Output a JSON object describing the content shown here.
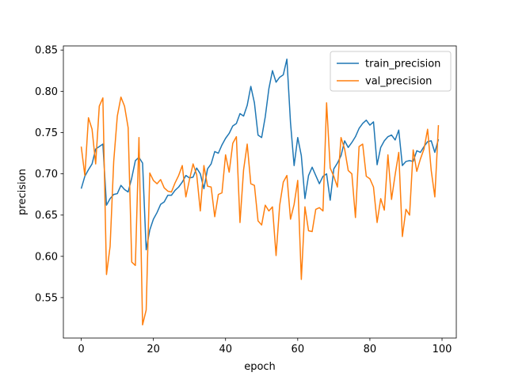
{
  "chart_data": {
    "type": "line",
    "x_label": "epoch",
    "y_label": "precision",
    "x": [
      0,
      1,
      2,
      3,
      4,
      5,
      6,
      7,
      8,
      9,
      10,
      11,
      12,
      13,
      14,
      15,
      16,
      17,
      18,
      19,
      20,
      21,
      22,
      23,
      24,
      25,
      26,
      27,
      28,
      29,
      30,
      31,
      32,
      33,
      34,
      35,
      36,
      37,
      38,
      39,
      40,
      41,
      42,
      43,
      44,
      45,
      46,
      47,
      48,
      49,
      50,
      51,
      52,
      53,
      54,
      55,
      56,
      57,
      58,
      59,
      60,
      61,
      62,
      63,
      64,
      65,
      66,
      67,
      68,
      69,
      70,
      71,
      72,
      73,
      74,
      75,
      76,
      77,
      78,
      79,
      80,
      81,
      82,
      83,
      84,
      85,
      86,
      87,
      88,
      89,
      90,
      91,
      92,
      93,
      94,
      95,
      96,
      97,
      98,
      99
    ],
    "series": [
      {
        "name": "train_precision",
        "color": "#1f77b4",
        "values": [
          0.682,
          0.697,
          0.705,
          0.712,
          0.73,
          0.733,
          0.736,
          0.662,
          0.67,
          0.675,
          0.676,
          0.686,
          0.681,
          0.678,
          0.695,
          0.716,
          0.72,
          0.713,
          0.608,
          0.632,
          0.645,
          0.653,
          0.663,
          0.666,
          0.674,
          0.674,
          0.68,
          0.684,
          0.69,
          0.698,
          0.695,
          0.696,
          0.707,
          0.7,
          0.682,
          0.706,
          0.712,
          0.727,
          0.725,
          0.735,
          0.743,
          0.749,
          0.758,
          0.761,
          0.773,
          0.77,
          0.783,
          0.806,
          0.786,
          0.747,
          0.744,
          0.769,
          0.803,
          0.825,
          0.811,
          0.817,
          0.82,
          0.839,
          0.762,
          0.71,
          0.744,
          0.722,
          0.67,
          0.698,
          0.708,
          0.698,
          0.688,
          0.697,
          0.7,
          0.668,
          0.706,
          0.713,
          0.722,
          0.74,
          0.732,
          0.738,
          0.745,
          0.755,
          0.761,
          0.765,
          0.759,
          0.763,
          0.711,
          0.732,
          0.74,
          0.745,
          0.747,
          0.741,
          0.753,
          0.71,
          0.715,
          0.716,
          0.715,
          0.728,
          0.726,
          0.733,
          0.739,
          0.74,
          0.726,
          0.742
        ]
      },
      {
        "name": "val_precision",
        "color": "#ff7f0e",
        "values": [
          0.733,
          0.698,
          0.768,
          0.754,
          0.712,
          0.782,
          0.792,
          0.578,
          0.612,
          0.715,
          0.77,
          0.793,
          0.782,
          0.756,
          0.593,
          0.589,
          0.744,
          0.517,
          0.535,
          0.701,
          0.692,
          0.688,
          0.693,
          0.683,
          0.679,
          0.678,
          0.689,
          0.698,
          0.71,
          0.672,
          0.693,
          0.712,
          0.699,
          0.655,
          0.71,
          0.685,
          0.684,
          0.648,
          0.675,
          0.677,
          0.723,
          0.702,
          0.737,
          0.745,
          0.641,
          0.705,
          0.736,
          0.688,
          0.686,
          0.643,
          0.638,
          0.662,
          0.655,
          0.66,
          0.601,
          0.662,
          0.69,
          0.698,
          0.645,
          0.663,
          0.692,
          0.572,
          0.66,
          0.631,
          0.63,
          0.657,
          0.659,
          0.655,
          0.786,
          0.707,
          0.697,
          0.684,
          0.744,
          0.73,
          0.704,
          0.7,
          0.647,
          0.733,
          0.736,
          0.697,
          0.694,
          0.684,
          0.641,
          0.67,
          0.656,
          0.723,
          0.669,
          0.699,
          0.726,
          0.624,
          0.657,
          0.65,
          0.729,
          0.703,
          0.718,
          0.73,
          0.754,
          0.704,
          0.672,
          0.759
        ]
      }
    ],
    "xlim": [
      -4.95,
      103.95
    ],
    "ylim": [
      0.501,
      0.855
    ],
    "xticks": [
      0,
      20,
      40,
      60,
      80,
      100
    ],
    "yticks": [
      0.55,
      {
        "value": 0.6,
        "label": "0.60"
      },
      0.65,
      {
        "value": 0.7,
        "label": "0.70"
      },
      0.75,
      {
        "value": 0.8,
        "label": "0.80"
      },
      0.85
    ],
    "legend": "upper right"
  }
}
